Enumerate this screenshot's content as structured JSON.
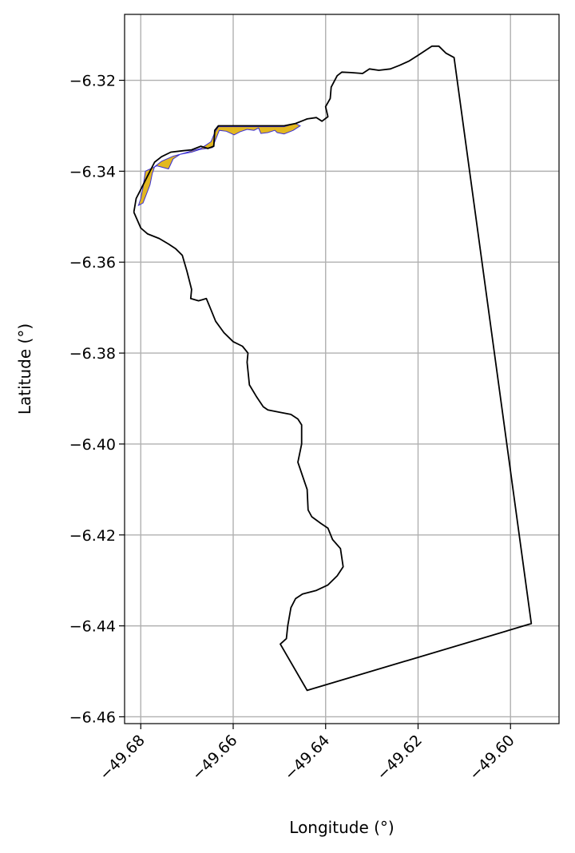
{
  "chart_data": {
    "type": "map",
    "xlabel": "Longitude (°)",
    "ylabel": "Latitude (°)",
    "xlim": [
      -49.6835,
      -49.5895
    ],
    "ylim": [
      -6.4615,
      -6.3055
    ],
    "x_ticks": [
      -49.68,
      -49.66,
      -49.64,
      -49.62,
      -49.6
    ],
    "x_tick_labels": [
      "−49.68",
      "−49.66",
      "−49.64",
      "−49.62",
      "−49.60"
    ],
    "y_ticks": [
      -6.32,
      -6.34,
      -6.36,
      -6.38,
      -6.4,
      -6.42,
      -6.44,
      -6.46
    ],
    "y_tick_labels": [
      "−6.32",
      "−6.34",
      "−6.36",
      "−6.38",
      "−6.40",
      "−6.42",
      "−6.44",
      "−6.46"
    ],
    "grid": true,
    "colors": {
      "boundary": "#000000",
      "fill": "#e2b820",
      "fill_edge": "#3a2fd6",
      "grid": "#b0b0b0"
    },
    "boundary": [
      [
        -49.6815,
        -6.349
      ],
      [
        -49.68,
        -6.3525
      ],
      [
        -49.6785,
        -6.3538
      ],
      [
        -49.676,
        -6.3548
      ],
      [
        -49.674,
        -6.356
      ],
      [
        -49.6725,
        -6.357
      ],
      [
        -49.671,
        -6.3585
      ],
      [
        -49.67,
        -6.362
      ],
      [
        -49.669,
        -6.366
      ],
      [
        -49.6692,
        -6.368
      ],
      [
        -49.6675,
        -6.3685
      ],
      [
        -49.6658,
        -6.368
      ],
      [
        -49.665,
        -6.37
      ],
      [
        -49.6638,
        -6.373
      ],
      [
        -49.662,
        -6.3755
      ],
      [
        -49.66,
        -6.3775
      ],
      [
        -49.658,
        -6.3785
      ],
      [
        -49.6568,
        -6.38
      ],
      [
        -49.657,
        -6.382
      ],
      [
        -49.6565,
        -6.387
      ],
      [
        -49.655,
        -6.3895
      ],
      [
        -49.6535,
        -6.3918
      ],
      [
        -49.6525,
        -6.3925
      ],
      [
        -49.65,
        -6.393
      ],
      [
        -49.6475,
        -6.3935
      ],
      [
        -49.646,
        -6.3945
      ],
      [
        -49.6452,
        -6.3958
      ],
      [
        -49.6452,
        -6.4
      ],
      [
        -49.646,
        -6.404
      ],
      [
        -49.645,
        -6.407
      ],
      [
        -49.644,
        -6.41
      ],
      [
        -49.6438,
        -6.4145
      ],
      [
        -49.643,
        -6.416
      ],
      [
        -49.641,
        -6.4175
      ],
      [
        -49.6395,
        -6.4185
      ],
      [
        -49.6385,
        -6.421
      ],
      [
        -49.6368,
        -6.423
      ],
      [
        -49.6362,
        -6.427
      ],
      [
        -49.6375,
        -6.429
      ],
      [
        -49.6395,
        -6.431
      ],
      [
        -49.642,
        -6.4322
      ],
      [
        -49.645,
        -6.433
      ],
      [
        -49.6465,
        -6.434
      ],
      [
        -49.6475,
        -6.436
      ],
      [
        -49.6482,
        -6.44
      ],
      [
        -49.6485,
        -6.4428
      ],
      [
        -49.6498,
        -6.444
      ],
      [
        -49.644,
        -6.4542
      ],
      [
        -49.5955,
        -6.4395
      ],
      [
        -49.6122,
        -6.315
      ],
      [
        -49.614,
        -6.314
      ],
      [
        -49.6155,
        -6.3125
      ],
      [
        -49.617,
        -6.3125
      ],
      [
        -49.6185,
        -6.3135
      ],
      [
        -49.62,
        -6.3145
      ],
      [
        -49.622,
        -6.3158
      ],
      [
        -49.624,
        -6.3167
      ],
      [
        -49.626,
        -6.3175
      ],
      [
        -49.6285,
        -6.3178
      ],
      [
        -49.6305,
        -6.3175
      ],
      [
        -49.632,
        -6.3185
      ],
      [
        -49.6345,
        -6.3183
      ],
      [
        -49.6365,
        -6.3182
      ],
      [
        -49.6375,
        -6.319
      ],
      [
        -49.6388,
        -6.3215
      ],
      [
        -49.639,
        -6.324
      ],
      [
        -49.64,
        -6.3258
      ],
      [
        -49.6395,
        -6.328
      ],
      [
        -49.6408,
        -6.329
      ],
      [
        -49.642,
        -6.3282
      ],
      [
        -49.644,
        -6.3285
      ],
      [
        -49.6465,
        -6.3295
      ],
      [
        -49.649,
        -6.33
      ],
      [
        -49.652,
        -6.33
      ],
      [
        -49.656,
        -6.33
      ],
      [
        -49.66,
        -6.33
      ],
      [
        -49.6632,
        -6.33
      ],
      [
        -49.664,
        -6.331
      ],
      [
        -49.6642,
        -6.3345
      ],
      [
        -49.6655,
        -6.335
      ],
      [
        -49.667,
        -6.3345
      ],
      [
        -49.669,
        -6.3353
      ],
      [
        -49.671,
        -6.3355
      ],
      [
        -49.6735,
        -6.3358
      ],
      [
        -49.6755,
        -6.3368
      ],
      [
        -49.677,
        -6.338
      ],
      [
        -49.678,
        -6.34
      ],
      [
        -49.679,
        -6.342
      ],
      [
        -49.68,
        -6.344
      ],
      [
        -49.681,
        -6.346
      ],
      [
        -49.6815,
        -6.349
      ]
    ],
    "highlight": [
      [
        -49.6795,
        -6.347
      ],
      [
        -49.678,
        -6.343
      ],
      [
        -49.6775,
        -6.3405
      ],
      [
        -49.677,
        -6.339
      ],
      [
        -49.6755,
        -6.3378
      ],
      [
        -49.673,
        -6.3367
      ],
      [
        -49.6705,
        -6.336
      ],
      [
        -49.669,
        -6.3355
      ],
      [
        -49.667,
        -6.335
      ],
      [
        -49.6648,
        -6.3335
      ],
      [
        -49.664,
        -6.3315
      ],
      [
        -49.6632,
        -6.3302
      ],
      [
        -49.66,
        -6.3302
      ],
      [
        -49.656,
        -6.3302
      ],
      [
        -49.652,
        -6.3302
      ],
      [
        -49.649,
        -6.3302
      ],
      [
        -49.6465,
        -6.3295
      ],
      [
        -49.6455,
        -6.33
      ],
      [
        -49.647,
        -6.331
      ],
      [
        -49.649,
        -6.3318
      ],
      [
        -49.6505,
        -6.3315
      ],
      [
        -49.651,
        -6.331
      ],
      [
        -49.6525,
        -6.3315
      ],
      [
        -49.654,
        -6.3317
      ],
      [
        -49.6545,
        -6.3305
      ],
      [
        -49.6555,
        -6.331
      ],
      [
        -49.657,
        -6.3308
      ],
      [
        -49.6585,
        -6.3313
      ],
      [
        -49.6598,
        -6.332
      ],
      [
        -49.6615,
        -6.3312
      ],
      [
        -49.663,
        -6.331
      ],
      [
        -49.6645,
        -6.3348
      ],
      [
        -49.6672,
        -6.3352
      ],
      [
        -49.669,
        -6.3358
      ],
      [
        -49.6715,
        -6.3363
      ],
      [
        -49.673,
        -6.3373
      ],
      [
        -49.674,
        -6.3395
      ],
      [
        -49.6765,
        -6.3388
      ],
      [
        -49.679,
        -6.34
      ],
      [
        -49.6795,
        -6.3435
      ],
      [
        -49.68,
        -6.346
      ],
      [
        -49.6805,
        -6.3475
      ],
      [
        -49.6795,
        -6.347
      ]
    ]
  }
}
